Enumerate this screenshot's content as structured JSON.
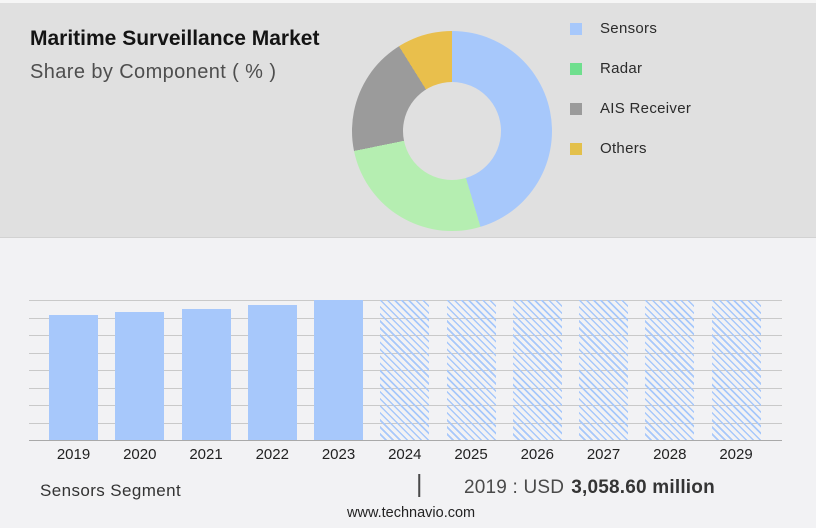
{
  "header": {
    "title": "Maritime Surveillance Market",
    "subtitle": "Share by Component ( % )"
  },
  "legend": {
    "items": [
      {
        "label": "Sensors",
        "color": "#a7c8fb"
      },
      {
        "label": "Radar",
        "color": "#6fdf8e"
      },
      {
        "label": "AIS Receiver",
        "color": "#9b9b9b"
      },
      {
        "label": "Others",
        "color": "#e3c04b"
      }
    ]
  },
  "footer": {
    "segment_label": "Sensors Segment",
    "divider": "|",
    "value_prefix": "2019 : USD",
    "value_bold": "3,058.60 million",
    "website": "www.technavio.com"
  },
  "colors": {
    "top_panel_bg": "#e0e0e0",
    "bottom_panel_bg": "#f2f2f4",
    "bar_blue": "#a7c8fb",
    "gridline": "#c9c9c9",
    "axis": "#a9a9a9"
  },
  "chart_data": [
    {
      "type": "pie",
      "title": "Share by Component ( % )",
      "labels": [
        "Sensors",
        "Radar",
        "AIS Receiver",
        "Others"
      ],
      "values": [
        45.4,
        26.4,
        19.3,
        8.9
      ],
      "colors": [
        "#a7c8fb",
        "#b5eeb1",
        "#9b9b9b",
        "#e9bf4c"
      ],
      "donut": true,
      "inner_radius_ratio": 0.49,
      "start_angle_deg": 0,
      "legend_position": "right"
    },
    {
      "type": "bar",
      "categories": [
        "2019",
        "2020",
        "2021",
        "2022",
        "2023",
        "2024",
        "2025",
        "2026",
        "2027",
        "2028",
        "2029"
      ],
      "values_relative_height": [
        0.895,
        0.912,
        0.936,
        0.966,
        1.0,
        1.0,
        1.0,
        1.0,
        1.0,
        1.0,
        1.0
      ],
      "forecast_from": "2024",
      "forecast_style": "diagonal-hatch",
      "bar_color": "#a7c8fb",
      "annotation": "2019 : USD 3,058.60 million",
      "xlabel": "",
      "ylabel": "",
      "gridline_count": 9,
      "y_axis_labels_shown": false
    }
  ]
}
